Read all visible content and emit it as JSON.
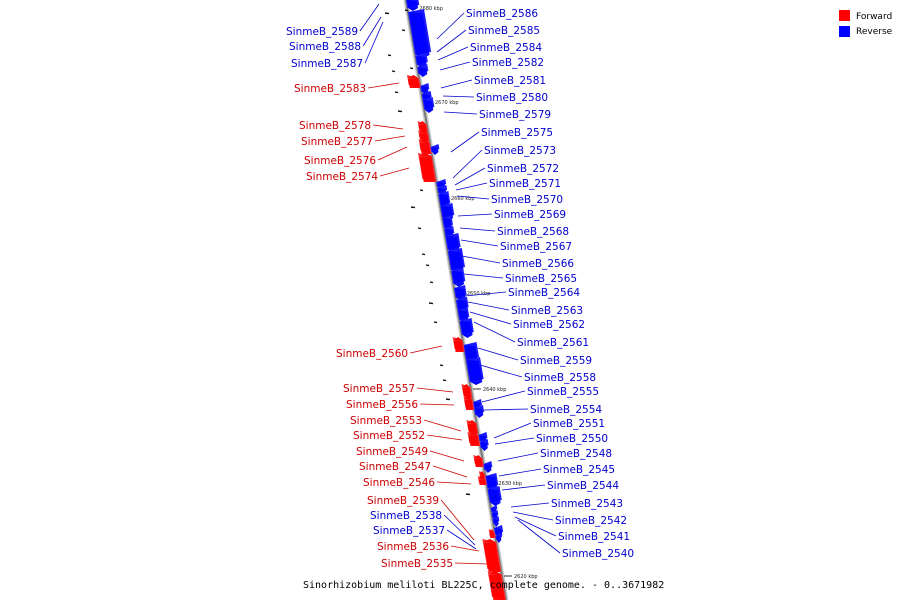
{
  "colors": {
    "forward": "#ff0000",
    "reverse": "#0000ff",
    "backbone": "#8a8a8a",
    "forward_label": "#cc0000",
    "reverse_label": "#0000cc"
  },
  "legend": {
    "forward": "Forward",
    "reverse": "Reverse"
  },
  "caption": "Sinorhizobium meliloti BL225C, complete genome. - 0..3671982",
  "ticks": [
    "2680 kbp",
    "2670 kbp",
    "2660 kbp",
    "2650 kbp",
    "2640 kbp",
    "2630 kbp",
    "2620 kbp"
  ],
  "reverse_genes": [
    "SinmeB_2589",
    "SinmeB_2588",
    "SinmeB_2587",
    "SinmeB_2586",
    "SinmeB_2585",
    "SinmeB_2584",
    "SinmeB_2582",
    "SinmeB_2581",
    "SinmeB_2580",
    "SinmeB_2579",
    "SinmeB_2575",
    "SinmeB_2573",
    "SinmeB_2572",
    "SinmeB_2571",
    "SinmeB_2570",
    "SinmeB_2569",
    "SinmeB_2568",
    "SinmeB_2567",
    "SinmeB_2566",
    "SinmeB_2565",
    "SinmeB_2564",
    "SinmeB_2563",
    "SinmeB_2562",
    "SinmeB_2561",
    "SinmeB_2559",
    "SinmeB_2558",
    "SinmeB_2555",
    "SinmeB_2554",
    "SinmeB_2551",
    "SinmeB_2550",
    "SinmeB_2548",
    "SinmeB_2545",
    "SinmeB_2544",
    "SinmeB_2543",
    "SinmeB_2542",
    "SinmeB_2541",
    "SinmeB_2540",
    "SinmeB_2538",
    "SinmeB_2537"
  ],
  "forward_genes": [
    "SinmeB_2583",
    "SinmeB_2578",
    "SinmeB_2577",
    "SinmeB_2576",
    "SinmeB_2574",
    "SinmeB_2560",
    "SinmeB_2557",
    "SinmeB_2556",
    "SinmeB_2553",
    "SinmeB_2552",
    "SinmeB_2549",
    "SinmeB_2547",
    "SinmeB_2546",
    "SinmeB_2539",
    "SinmeB_2536",
    "SinmeB_2535"
  ]
}
